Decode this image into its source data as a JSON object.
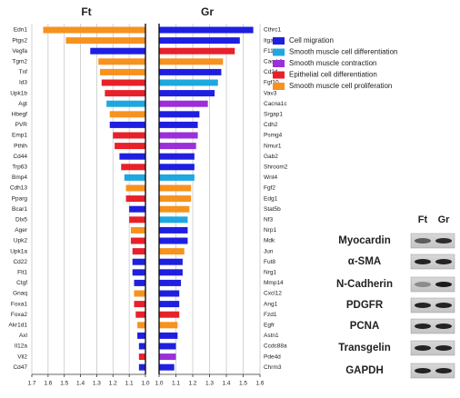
{
  "chart_data": [
    {
      "type": "hbar",
      "title": "Ft",
      "xlim": [
        1.7,
        1.0
      ],
      "xticks": [
        1.7,
        1.6,
        1.5,
        1.4,
        1.3,
        1.2,
        1.1,
        {
          "value": 1,
          "label": "1.0"
        }
      ],
      "categories": [
        "Edn1",
        "Ptgs2",
        "Vegfa",
        "Tgm2",
        "Tnf",
        "Id3",
        "Upk1b",
        "Agt",
        "Hbegf",
        "PVR",
        "Emp1",
        "Pthlh",
        "Cd44",
        "Trp63",
        "Bmp4",
        "Cdh13",
        "Pparg",
        "Bcar1",
        "Dlx5",
        "Ager",
        "Upk2",
        "Upk1a",
        "Cd22",
        "Flt1",
        "Ctgf",
        "Gnaq",
        "Foxa1",
        "Foxa2",
        "Akr1d1",
        "Axl",
        "Il12a",
        "Vil2",
        "Cd47"
      ],
      "values": [
        1.63,
        1.49,
        1.34,
        1.29,
        1.28,
        1.27,
        1.25,
        1.24,
        1.22,
        1.22,
        1.2,
        1.19,
        1.16,
        1.15,
        1.13,
        1.12,
        1.12,
        1.1,
        1.1,
        1.09,
        1.09,
        1.08,
        1.08,
        1.08,
        1.07,
        1.07,
        1.07,
        1.06,
        1.05,
        1.05,
        1.04,
        1.04,
        1.04
      ],
      "colors": [
        "#f7921e",
        "#f7921e",
        "#1f1fe0",
        "#f7921e",
        "#f7921e",
        "#e8202a",
        "#e8202a",
        "#1fa7e0",
        "#f7921e",
        "#1f1fe0",
        "#e8202a",
        "#e8202a",
        "#1f1fe0",
        "#e8202a",
        "#1fa7e0",
        "#f7921e",
        "#e8202a",
        "#1f1fe0",
        "#e8202a",
        "#f7921e",
        "#e8202a",
        "#e8202a",
        "#1f1fe0",
        "#1f1fe0",
        "#1f1fe0",
        "#f7921e",
        "#e8202a",
        "#e8202a",
        "#f7921e",
        "#1f1fe0",
        "#1f1fe0",
        "#e8202a",
        "#1f1fe0"
      ],
      "grid": true
    },
    {
      "type": "hbar",
      "title": "Gr",
      "xlim": [
        1.0,
        1.6
      ],
      "xticks": [
        {
          "value": 1,
          "label": "1.0"
        },
        1.1,
        1.2,
        1.3,
        1.4,
        1.5,
        1.6
      ],
      "categories": [
        "Cthrc1",
        "Itga4",
        "F11r",
        "Cacdr1",
        "Cd24",
        "Fgf10",
        "Vav3",
        "Cacna1c",
        "Srgap1",
        "Cdh2",
        "Psmg4",
        "Nmur1",
        "Gab2",
        "Shroom2",
        "Wnt4",
        "Fgf2",
        "Edg1",
        "Stat5b",
        "Nf3",
        "Nrp1",
        "Mdk",
        "Jun",
        "Fut8",
        "Nrg1",
        "Mmp14",
        "Cxcl12",
        "Ang1",
        "Fzd1",
        "Egfr",
        "Astn1",
        "Ccdc88a",
        "Pde4d",
        "Chrm3"
      ],
      "values": [
        1.56,
        1.48,
        1.45,
        1.38,
        1.37,
        1.35,
        1.33,
        1.29,
        1.24,
        1.23,
        1.23,
        1.22,
        1.21,
        1.21,
        1.21,
        1.19,
        1.19,
        1.18,
        1.17,
        1.17,
        1.17,
        1.15,
        1.14,
        1.14,
        1.13,
        1.12,
        1.12,
        1.12,
        1.11,
        1.11,
        1.1,
        1.1,
        1.09
      ],
      "colors": [
        "#1f1fe0",
        "#1f1fe0",
        "#e8202a",
        "#f7921e",
        "#1f1fe0",
        "#1fa7e0",
        "#1f1fe0",
        "#9b30d9",
        "#1f1fe0",
        "#1f1fe0",
        "#9b30d9",
        "#9b30d9",
        "#1f1fe0",
        "#1f1fe0",
        "#1fa7e0",
        "#f7921e",
        "#f7921e",
        "#f7921e",
        "#1fa7e0",
        "#1f1fe0",
        "#1f1fe0",
        "#f7921e",
        "#1f1fe0",
        "#1f1fe0",
        "#1f1fe0",
        "#1f1fe0",
        "#1f1fe0",
        "#e8202a",
        "#f7921e",
        "#1f1fe0",
        "#1f1fe0",
        "#9b30d9",
        "#1f1fe0"
      ],
      "grid": true
    }
  ],
  "legend": [
    {
      "name": "Cell migration",
      "color": "#1f1fe0"
    },
    {
      "name": "Smooth muscle cell differentiation",
      "color": "#1fa7e0"
    },
    {
      "name": "Smooth muscle contraction",
      "color": "#9b30d9"
    },
    {
      "name": "Epithelial cell differentiation",
      "color": "#e8202a"
    },
    {
      "name": "Smooth muscle cell proliferation",
      "color": "#f7921e"
    }
  ],
  "blot": {
    "columns": [
      "Ft",
      "Gr"
    ],
    "rows": [
      "Myocardin",
      "α-SMA",
      "N-Cadherin",
      "PDGFR",
      "PCNA",
      "Transgelin",
      "GAPDH"
    ]
  }
}
